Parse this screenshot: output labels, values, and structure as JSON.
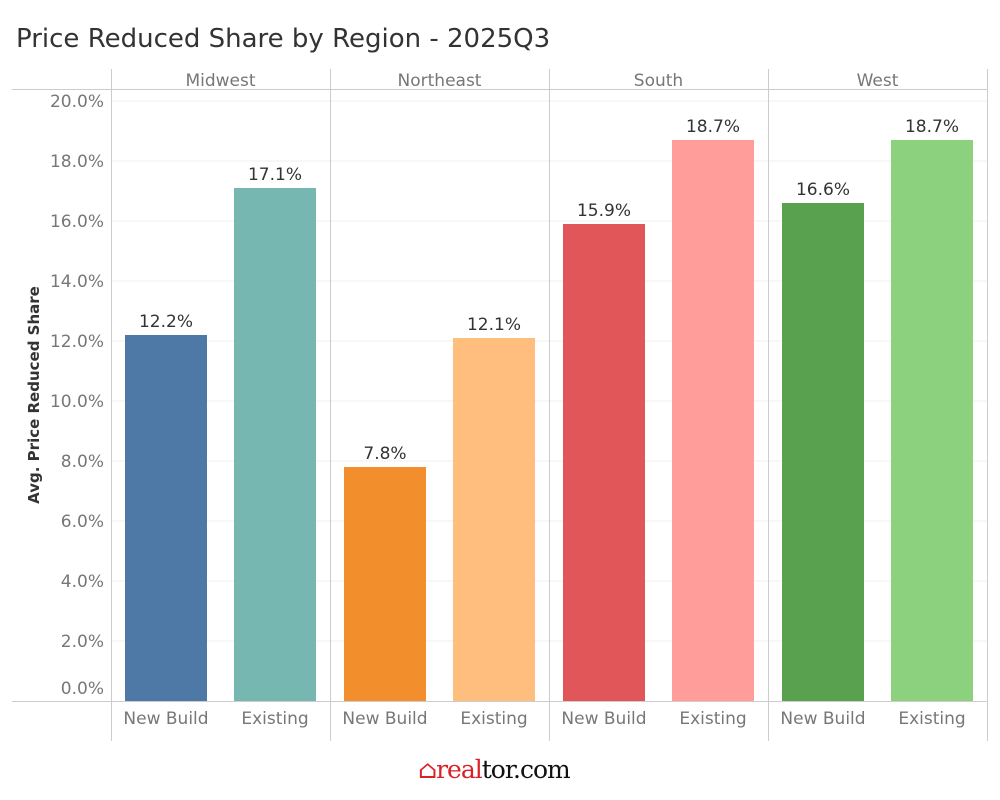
{
  "chart_data": {
    "type": "bar",
    "title": "Price Reduced Share by Region - 2025Q3",
    "xlabel": "",
    "ylabel": "Avg. Price Reduced Share",
    "ylim": [
      0,
      20
    ],
    "yticks": [
      "0.0%",
      "2.0%",
      "4.0%",
      "6.0%",
      "8.0%",
      "10.0%",
      "12.0%",
      "14.0%",
      "16.0%",
      "18.0%",
      "20.0%"
    ],
    "grid": true,
    "panels": [
      "Midwest",
      "Northeast",
      "South",
      "West"
    ],
    "categories": [
      "New Build",
      "Existing"
    ],
    "series": [
      {
        "name": "Midwest",
        "values": [
          12.2,
          17.1
        ],
        "labels": [
          "12.2%",
          "17.1%"
        ],
        "colors": [
          "#4e79a7",
          "#76b7b2"
        ]
      },
      {
        "name": "Northeast",
        "values": [
          7.8,
          12.1
        ],
        "labels": [
          "7.8%",
          "12.1%"
        ],
        "colors": [
          "#f28e2b",
          "#ffbe7d"
        ]
      },
      {
        "name": "South",
        "values": [
          15.9,
          18.7
        ],
        "labels": [
          "15.9%",
          "18.7%"
        ],
        "colors": [
          "#e15759",
          "#ff9d9a"
        ]
      },
      {
        "name": "West",
        "values": [
          16.6,
          18.7
        ],
        "labels": [
          "16.6%",
          "18.7%"
        ],
        "colors": [
          "#59a14f",
          "#8cd17d"
        ]
      }
    ]
  },
  "logo": {
    "part1": "real",
    "part2": "tor.com"
  }
}
